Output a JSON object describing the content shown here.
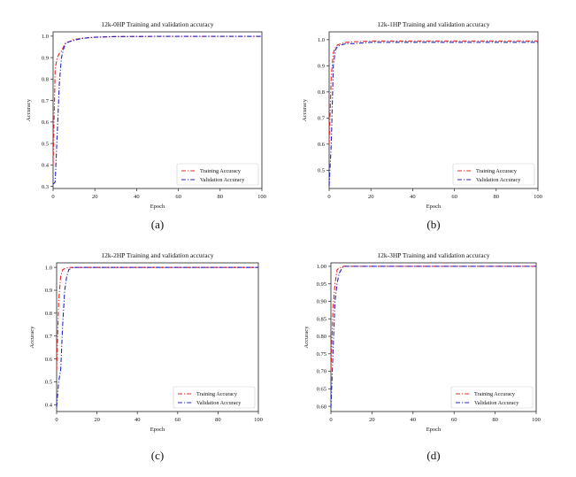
{
  "chart_data": [
    {
      "panel": "(a)",
      "type": "line",
      "title": "12k-0HP Training and validation accuracy",
      "xlabel": "Epoch",
      "ylabel": "Accuracy",
      "xlim": [
        0,
        100
      ],
      "ylim": [
        0.29,
        1.02
      ],
      "xticks": [
        0,
        20,
        40,
        60,
        80,
        100
      ],
      "yticks": [
        0.3,
        0.4,
        0.5,
        0.6,
        0.7,
        0.8,
        0.9,
        1.0
      ],
      "ytick_labels": [
        "0.3",
        "0.4",
        "0.5",
        "0.6",
        "0.7",
        "0.8",
        "0.9",
        "1.0"
      ],
      "grid": false,
      "legend": "lower-right",
      "series": [
        {
          "name": "Training Accuracy",
          "color": "#e8231e",
          "dash": "dashdot",
          "x": [
            0,
            1,
            2,
            3,
            4,
            5,
            6,
            8,
            10,
            14,
            20,
            30,
            50,
            100
          ],
          "y": [
            0.4,
            0.85,
            0.9,
            0.92,
            0.93,
            0.95,
            0.97,
            0.975,
            0.985,
            0.99,
            0.995,
            0.998,
            0.999,
            0.999
          ]
        },
        {
          "name": "Validation Accuracy",
          "color": "#2424c8",
          "dash": "dashdot",
          "x": [
            0,
            1,
            2,
            3,
            4,
            5,
            6,
            8,
            10,
            14,
            20,
            30,
            50,
            100
          ],
          "y": [
            0.31,
            0.32,
            0.55,
            0.78,
            0.9,
            0.94,
            0.965,
            0.975,
            0.98,
            0.99,
            0.995,
            0.998,
            0.999,
            0.999
          ]
        }
      ]
    },
    {
      "panel": "(b)",
      "type": "line",
      "title": "12k-1HP Training and validation accuracy",
      "xlabel": "Epoch",
      "ylabel": "Accuracy",
      "xlim": [
        0,
        100
      ],
      "ylim": [
        0.43,
        1.03
      ],
      "xticks": [
        0,
        20,
        40,
        60,
        80,
        100
      ],
      "yticks": [
        0.5,
        0.6,
        0.7,
        0.8,
        0.9,
        1.0
      ],
      "ytick_labels": [
        "0.5",
        "0.6",
        "0.7",
        "0.8",
        "0.9",
        "1.0"
      ],
      "grid": false,
      "legend": "lower-right",
      "series": [
        {
          "name": "Training Accuracy",
          "color": "#e8231e",
          "dash": "dashdot",
          "x": [
            0,
            1,
            2,
            3,
            4,
            6,
            8,
            12,
            20,
            40,
            60,
            80,
            100
          ],
          "y": [
            0.6,
            0.86,
            0.95,
            0.97,
            0.98,
            0.985,
            0.99,
            0.992,
            0.995,
            0.995,
            0.995,
            0.995,
            0.995
          ]
        },
        {
          "name": "Validation Accuracy",
          "color": "#2424c8",
          "dash": "dashdot",
          "x": [
            0,
            1,
            2,
            3,
            4,
            6,
            8,
            12,
            20,
            40,
            60,
            80,
            100
          ],
          "y": [
            0.44,
            0.6,
            0.9,
            0.96,
            0.975,
            0.98,
            0.985,
            0.985,
            0.99,
            0.99,
            0.99,
            0.99,
            0.99
          ]
        }
      ]
    },
    {
      "panel": "(c)",
      "type": "line",
      "title": "12k-2HP Training and validation accuracy",
      "xlabel": "Epoch",
      "ylabel": "Accuracy",
      "xlim": [
        0,
        100
      ],
      "ylim": [
        0.37,
        1.02
      ],
      "xticks": [
        0,
        20,
        40,
        60,
        80,
        100
      ],
      "yticks": [
        0.4,
        0.5,
        0.6,
        0.7,
        0.8,
        0.9,
        1.0
      ],
      "ytick_labels": [
        "0.4",
        "0.5",
        "0.6",
        "0.7",
        "0.8",
        "0.9",
        "1.0"
      ],
      "grid": false,
      "legend": "lower-right",
      "series": [
        {
          "name": "Training Accuracy",
          "color": "#e8231e",
          "dash": "dashdot",
          "x": [
            0,
            1,
            2,
            3,
            4,
            6,
            10,
            20,
            50,
            100
          ],
          "y": [
            0.55,
            0.85,
            0.96,
            0.99,
            0.995,
            1.0,
            1.0,
            1.0,
            1.0,
            1.0
          ]
        },
        {
          "name": "Validation Accuracy",
          "color": "#2424c8",
          "dash": "dashdot",
          "x": [
            0,
            1,
            2,
            3,
            4,
            5,
            6,
            8,
            10,
            20,
            50,
            100
          ],
          "y": [
            0.39,
            0.5,
            0.55,
            0.75,
            0.9,
            0.96,
            0.99,
            1.0,
            1.0,
            1.0,
            1.0,
            1.0
          ]
        }
      ]
    },
    {
      "panel": "(d)",
      "type": "line",
      "title": "12k-3HP Training and validation accuracy",
      "xlabel": "Epoch",
      "ylabel": "Accuracy",
      "xlim": [
        0,
        100
      ],
      "ylim": [
        0.585,
        1.01
      ],
      "xticks": [
        0,
        20,
        40,
        60,
        80,
        100
      ],
      "yticks": [
        0.6,
        0.65,
        0.7,
        0.75,
        0.8,
        0.85,
        0.9,
        0.95,
        1.0
      ],
      "ytick_labels": [
        "0.60",
        "0.65",
        "0.70",
        "0.75",
        "0.80",
        "0.85",
        "0.90",
        "0.95",
        "1.00"
      ],
      "grid": false,
      "legend": "lower-right",
      "series": [
        {
          "name": "Training Accuracy",
          "color": "#e8231e",
          "dash": "dashdot",
          "x": [
            0,
            1,
            2,
            3,
            4,
            6,
            10,
            20,
            50,
            100
          ],
          "y": [
            0.7,
            0.88,
            0.95,
            0.99,
            0.995,
            1.0,
            1.0,
            1.0,
            1.0,
            1.0
          ]
        },
        {
          "name": "Validation Accuracy",
          "color": "#2424c8",
          "dash": "dashdot",
          "x": [
            0,
            1,
            2,
            3,
            4,
            5,
            6,
            8,
            10,
            20,
            50,
            100
          ],
          "y": [
            0.595,
            0.75,
            0.9,
            0.95,
            0.98,
            0.99,
            1.0,
            1.0,
            1.0,
            1.0,
            1.0,
            1.0
          ]
        }
      ]
    }
  ]
}
